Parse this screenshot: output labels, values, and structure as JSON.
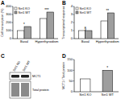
{
  "chart_data": [
    {
      "type": "bar",
      "title": "A",
      "y_label": "Cell transcription (%)",
      "categories": [
        "Basal",
        "Hyperthyroidism"
      ],
      "series": [
        {
          "name": "Sirt1 KO",
          "color": "#ffffff",
          "values": [
            100,
            250
          ]
        },
        {
          "name": "Sirt1 WT",
          "color": "#9e9e9e",
          "values": [
            150,
            330
          ]
        }
      ],
      "ylim": [
        0,
        400
      ],
      "yticks": [
        0,
        100,
        200,
        300,
        400
      ],
      "legend": "upper left",
      "annotations": [
        {
          "text": "*",
          "category": "Basal"
        },
        {
          "text": "***",
          "category": "Hyperthyroidism"
        }
      ]
    },
    {
      "type": "bar",
      "title": "B",
      "y_label": "Transcriptional response",
      "categories": [
        "Basal",
        "Hyperthyroidism"
      ],
      "series": [
        {
          "name": "Sirt1 KO",
          "color": "#ffffff",
          "values": [
            1,
            2.2
          ]
        },
        {
          "name": "Sirt1 WT",
          "color": "#9e9e9e",
          "values": [
            1,
            3.2
          ]
        }
      ],
      "ylim": [
        0,
        4
      ],
      "yticks": [
        0,
        1,
        2,
        3,
        4
      ],
      "legend": "upper left",
      "annotations": [
        {
          "text": "§",
          "category": "Basal"
        },
        {
          "text": "**",
          "category": "Hyperthyroidism"
        }
      ]
    },
    {
      "type": "bar",
      "title": "D",
      "y_label": "MCT1 / Total protein",
      "categories": [
        "Sirt1 KO",
        "Sirt1 WT"
      ],
      "values": [
        60,
        100
      ],
      "colors": [
        "#ffffff",
        "#9e9e9e"
      ],
      "ylim": [
        0,
        150
      ],
      "yticks": [
        0,
        50,
        100,
        150
      ],
      "annotations": [
        {
          "text": "*",
          "category": "Sirt1 WT"
        }
      ]
    }
  ],
  "blot": {
    "title": "C",
    "lanes": [
      "Sirt1 KO",
      "Sirt1 WT"
    ],
    "rows": [
      "MCT1",
      "Total protein"
    ]
  }
}
